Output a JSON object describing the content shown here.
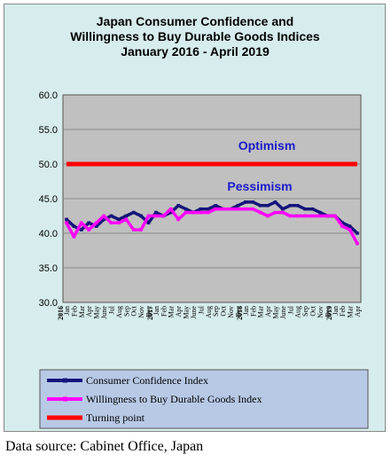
{
  "chart_data": {
    "type": "line",
    "title": [
      "Japan Consumer Confidence and",
      "Willingness to Buy Durable Goods Indices",
      "January 2016 - April 2019"
    ],
    "y_ticks": [
      "60.0",
      "55.0",
      "50.0",
      "45.0",
      "40.0",
      "35.0",
      "30.0"
    ],
    "ylim": [
      30,
      60
    ],
    "x_labels": [
      "Jan",
      "Feb",
      "Mar",
      "Apr",
      "May",
      "June",
      "Jul",
      "Aug",
      "Sep",
      "Oct",
      "Nov",
      "Dec",
      "Jan",
      "Feb",
      "Mar",
      "Apr",
      "May",
      "June",
      "Jul",
      "Aug",
      "Sep",
      "Oct",
      "Nov",
      "Dec",
      "Jan",
      "Feb",
      "Mar",
      "Apr",
      "May",
      "June",
      "Jul",
      "Aug",
      "Sep",
      "Oct",
      "Nov",
      "Dec",
      "Jan",
      "Feb",
      "Mar",
      "Apr"
    ],
    "year_labels": [
      {
        "index": 0,
        "label": "2016"
      },
      {
        "index": 12,
        "label": "2017"
      },
      {
        "index": 24,
        "label": "2018"
      },
      {
        "index": 36,
        "label": "2019"
      }
    ],
    "annotations": {
      "optimism": "Optimism",
      "pessimism": "Pessimism"
    },
    "grid": true,
    "legend_position": "bottom",
    "series": [
      {
        "name": "Consumer Confidence Index",
        "color": "#14147a",
        "values": [
          42.0,
          41.0,
          40.5,
          41.5,
          41.0,
          42.0,
          42.5,
          42.0,
          42.5,
          43.0,
          42.5,
          41.5,
          43.0,
          42.5,
          43.0,
          44.0,
          43.5,
          43.0,
          43.5,
          43.5,
          44.0,
          43.5,
          43.5,
          44.0,
          44.5,
          44.5,
          44.0,
          44.0,
          44.5,
          43.5,
          44.0,
          44.0,
          43.5,
          43.5,
          43.0,
          42.5,
          42.5,
          41.5,
          41.0,
          40.0
        ]
      },
      {
        "name": "Willingness to Buy Durable Goods Index",
        "color": "#ff00ff",
        "values": [
          41.5,
          39.5,
          41.5,
          40.5,
          41.5,
          42.5,
          41.5,
          41.5,
          42.0,
          40.5,
          40.5,
          42.5,
          42.5,
          42.5,
          43.5,
          42.0,
          43.0,
          43.0,
          43.0,
          43.0,
          43.5,
          43.5,
          43.5,
          43.5,
          43.5,
          43.5,
          43.0,
          42.5,
          43.0,
          43.0,
          42.5,
          42.5,
          42.5,
          42.5,
          42.5,
          42.5,
          42.5,
          41.0,
          40.5,
          38.5
        ]
      },
      {
        "name": "Turning point",
        "color": "#ff0000",
        "values": [
          50,
          50,
          50,
          50,
          50,
          50,
          50,
          50,
          50,
          50,
          50,
          50,
          50,
          50,
          50,
          50,
          50,
          50,
          50,
          50,
          50,
          50,
          50,
          50,
          50,
          50,
          50,
          50,
          50,
          50,
          50,
          50,
          50,
          50,
          50,
          50,
          50,
          50,
          50,
          50
        ]
      }
    ]
  },
  "source": "Data source: Cabinet Office, Japan"
}
